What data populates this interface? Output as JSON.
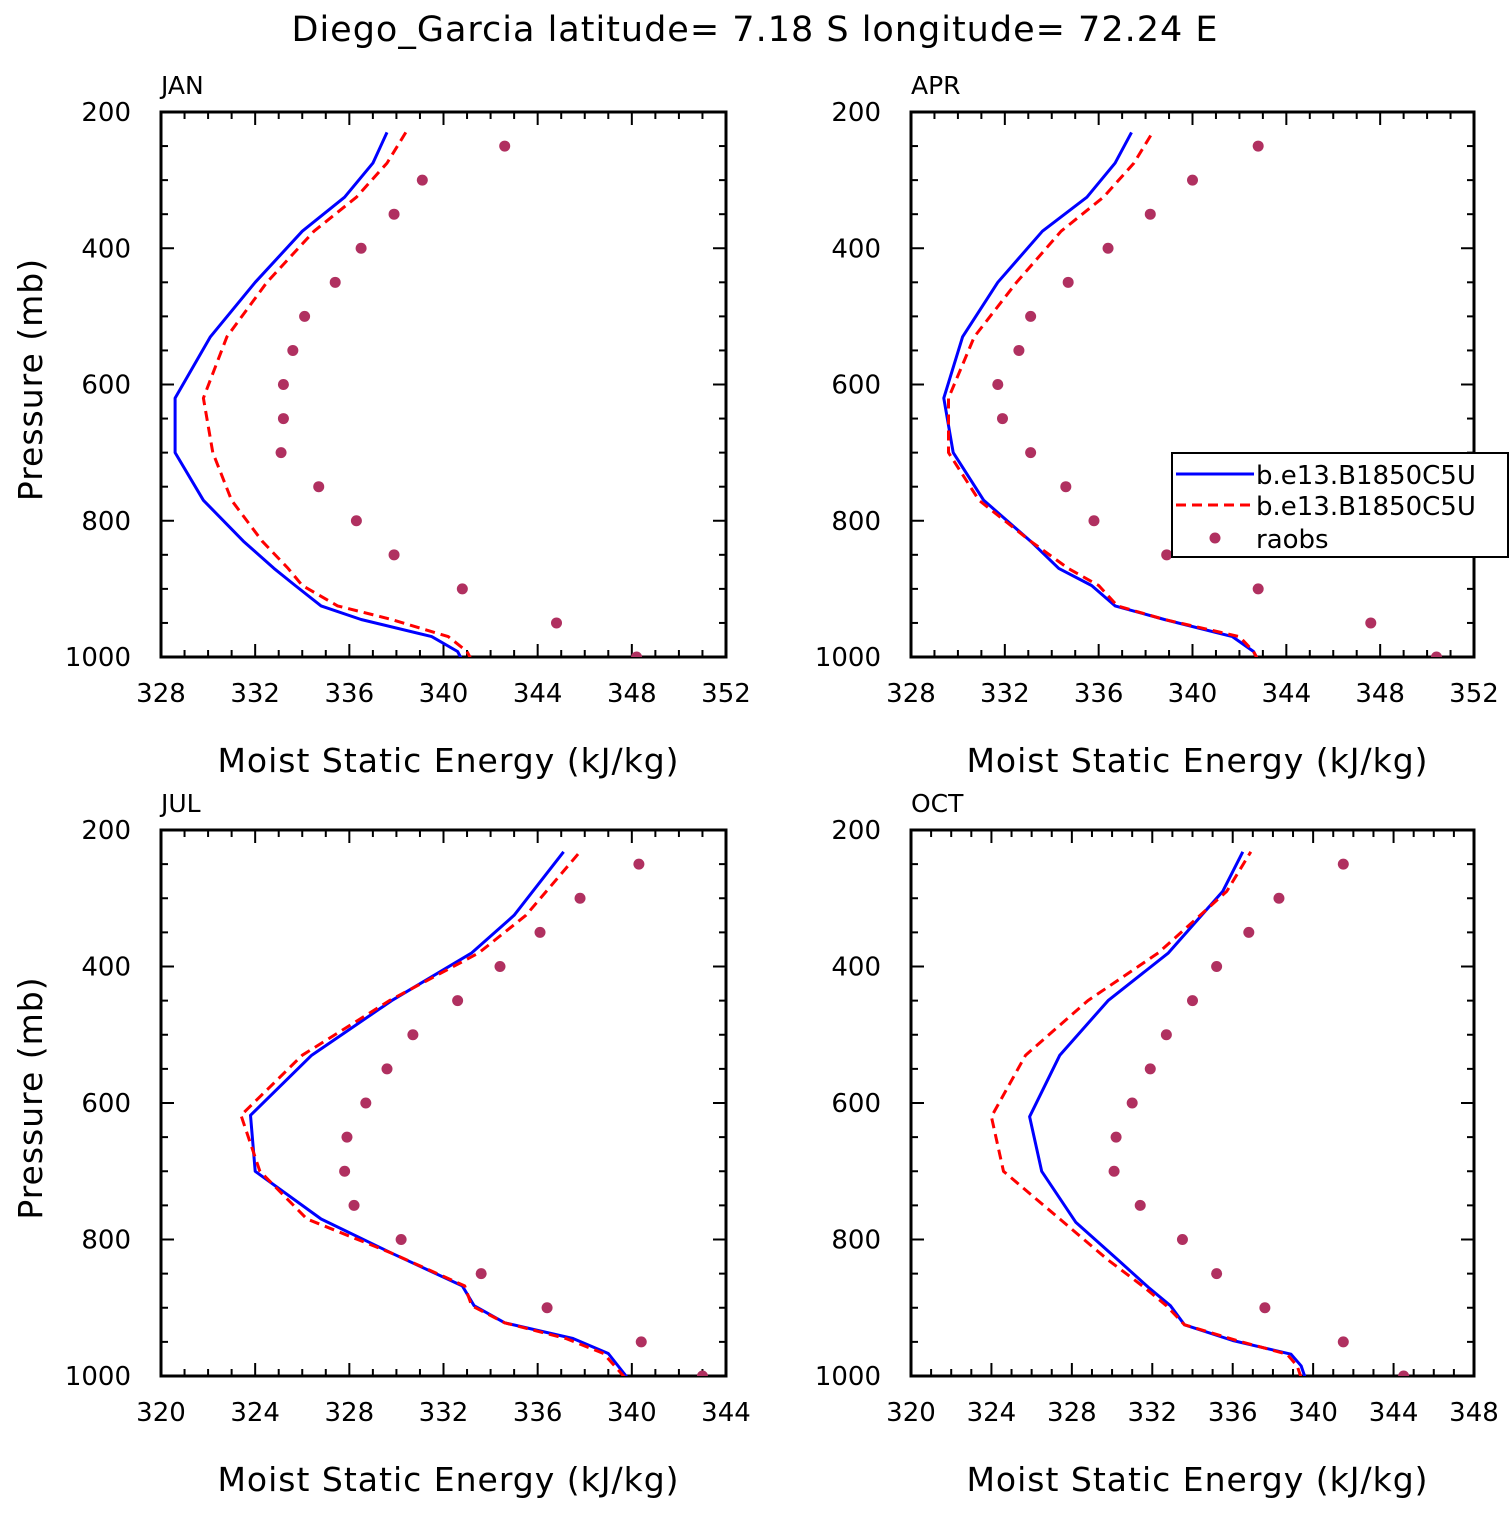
{
  "title": "Diego_Garcia  latitude= 7.18 S longitude= 72.24 E",
  "colors": {
    "model1": "#0000ff",
    "model2": "#ff0000",
    "raobs": "#b03060",
    "axis": "#000000"
  },
  "legend": [
    "b.e13.B1850C5U",
    "b.e13.B1850C5U",
    "raobs"
  ],
  "chart_data": [
    {
      "type": "line",
      "panel": "JAN",
      "xlabel": "Moist Static Energy (kJ/kg)",
      "ylabel": "Pressure (mb)",
      "xlim": [
        328,
        352
      ],
      "ylim": [
        1000,
        200
      ],
      "xticks": [
        328,
        332,
        336,
        340,
        344,
        348,
        352
      ],
      "yticks": [
        200,
        400,
        600,
        800,
        1000
      ],
      "legend": false,
      "series": [
        {
          "name": "b.e13.B1850C5U",
          "style": "solid",
          "x": [
            340.8,
            340.6,
            339.5,
            336.5,
            334.8,
            333.7,
            332.8,
            331.5,
            329.8,
            328.6,
            328.6,
            330.1,
            332.0,
            334.0,
            335.8,
            337.0,
            337.6
          ],
          "y": [
            1005,
            992,
            970,
            945,
            925,
            895,
            870,
            830,
            770,
            700,
            620,
            530,
            450,
            375,
            325,
            275,
            230
          ]
        },
        {
          "name": "b.e13.B1850C5U",
          "style": "dashed",
          "x": [
            341.2,
            341.0,
            340.2,
            337.8,
            335.5,
            334.0,
            333.4,
            332.3,
            331.0,
            330.2,
            329.8,
            330.8,
            332.5,
            334.5,
            336.3,
            337.6,
            338.4
          ],
          "y": [
            1005,
            992,
            970,
            945,
            925,
            895,
            870,
            830,
            770,
            700,
            620,
            530,
            450,
            375,
            325,
            275,
            230
          ]
        },
        {
          "name": "raobs",
          "style": "points",
          "x": [
            348.2,
            344.8,
            340.8,
            337.9,
            336.3,
            334.7,
            333.1,
            333.2,
            333.2,
            333.6,
            334.1,
            335.4,
            336.5,
            337.9,
            339.1,
            342.6
          ],
          "y": [
            1000,
            950,
            900,
            850,
            800,
            750,
            700,
            650,
            600,
            550,
            500,
            450,
            400,
            350,
            300,
            250
          ]
        }
      ]
    },
    {
      "type": "line",
      "panel": "APR",
      "xlabel": "Moist Static Energy (kJ/kg)",
      "ylabel": "",
      "xlim": [
        328,
        352
      ],
      "ylim": [
        1000,
        200
      ],
      "xticks": [
        328,
        332,
        336,
        340,
        344,
        348,
        352
      ],
      "yticks": [
        200,
        400,
        600,
        800,
        1000
      ],
      "legend": true,
      "series": [
        {
          "name": "b.e13.B1850C5U",
          "style": "solid",
          "x": [
            342.8,
            342.6,
            341.7,
            338.8,
            336.7,
            335.7,
            334.3,
            333.1,
            331.1,
            329.8,
            329.4,
            330.2,
            331.7,
            333.6,
            335.5,
            336.7,
            337.4
          ],
          "y": [
            1005,
            992,
            970,
            945,
            925,
            895,
            870,
            830,
            770,
            700,
            620,
            530,
            450,
            375,
            325,
            275,
            230
          ]
        },
        {
          "name": "b.e13.B1850C5U",
          "style": "dashed",
          "x": [
            342.8,
            342.6,
            342.0,
            338.8,
            336.8,
            336.0,
            334.7,
            333.1,
            330.9,
            329.6,
            329.6,
            330.7,
            332.5,
            334.4,
            336.2,
            337.5,
            338.3
          ],
          "y": [
            1005,
            992,
            970,
            945,
            925,
            895,
            870,
            830,
            770,
            700,
            620,
            530,
            450,
            375,
            325,
            275,
            230
          ]
        },
        {
          "name": "raobs",
          "style": "points",
          "x": [
            350.4,
            347.6,
            342.8,
            338.9,
            335.8,
            334.6,
            333.1,
            331.9,
            331.7,
            332.6,
            333.1,
            334.7,
            336.4,
            338.2,
            340.0,
            342.8
          ],
          "y": [
            1000,
            950,
            900,
            850,
            800,
            750,
            700,
            650,
            600,
            550,
            500,
            450,
            400,
            350,
            300,
            250
          ]
        }
      ]
    },
    {
      "type": "line",
      "panel": "JUL",
      "xlabel": "Moist Static Energy (kJ/kg)",
      "ylabel": "Pressure (mb)",
      "xlim": [
        320,
        344
      ],
      "ylim": [
        1000,
        200
      ],
      "xticks": [
        320,
        324,
        328,
        332,
        336,
        340,
        344
      ],
      "yticks": [
        200,
        400,
        600,
        800,
        1000
      ],
      "legend": false,
      "series": [
        {
          "name": "b.e13.B1850C5U",
          "style": "solid",
          "x": [
            339.8,
            339.0,
            337.5,
            334.6,
            333.3,
            332.8,
            329.8,
            326.8,
            324.0,
            323.8,
            326.4,
            329.8,
            333.2,
            335.0,
            337.1
          ],
          "y": [
            1002,
            967,
            945,
            922,
            897,
            868,
            820,
            770,
            700,
            618,
            530,
            450,
            380,
            325,
            232
          ]
        },
        {
          "name": "b.e13.B1850C5U",
          "style": "dashed",
          "x": [
            339.7,
            338.8,
            337.2,
            334.6,
            333.2,
            332.9,
            329.8,
            326.2,
            324.2,
            323.4,
            326.0,
            329.7,
            333.5,
            335.5,
            337.8
          ],
          "y": [
            1002,
            967,
            945,
            922,
            897,
            868,
            820,
            770,
            700,
            618,
            530,
            450,
            380,
            325,
            232
          ]
        },
        {
          "name": "raobs",
          "style": "points",
          "x": [
            343.0,
            340.4,
            336.4,
            333.6,
            330.2,
            328.2,
            327.8,
            327.9,
            328.7,
            329.6,
            330.7,
            332.6,
            334.4,
            336.1,
            337.8,
            340.3
          ],
          "y": [
            1000,
            950,
            900,
            850,
            800,
            750,
            700,
            650,
            600,
            550,
            500,
            450,
            400,
            350,
            300,
            250
          ]
        }
      ]
    },
    {
      "type": "line",
      "panel": "OCT",
      "xlabel": "Moist Static Energy (kJ/kg)",
      "ylabel": "",
      "xlim": [
        320,
        348
      ],
      "ylim": [
        1000,
        200
      ],
      "xticks": [
        320,
        324,
        328,
        332,
        336,
        340,
        344,
        348
      ],
      "yticks": [
        200,
        400,
        600,
        800,
        1000
      ],
      "legend": false,
      "series": [
        {
          "name": "b.e13.B1850C5U",
          "style": "solid",
          "x": [
            339.6,
            339.4,
            338.9,
            336.0,
            333.6,
            332.9,
            331.8,
            330.3,
            328.2,
            326.5,
            325.9,
            327.4,
            329.8,
            332.8,
            335.5,
            336.5
          ],
          "y": [
            1002,
            985,
            968,
            948,
            925,
            897,
            870,
            830,
            775,
            700,
            620,
            530,
            450,
            380,
            290,
            232
          ]
        },
        {
          "name": "b.e13.B1850C5U",
          "style": "dashed",
          "x": [
            339.4,
            339.2,
            338.7,
            336.2,
            333.6,
            332.7,
            331.6,
            329.8,
            327.6,
            324.6,
            324.0,
            325.7,
            328.8,
            332.3,
            335.7,
            336.9
          ],
          "y": [
            1002,
            985,
            968,
            948,
            925,
            897,
            870,
            830,
            775,
            700,
            620,
            530,
            450,
            380,
            290,
            232
          ]
        },
        {
          "name": "raobs",
          "style": "points",
          "x": [
            344.5,
            341.5,
            337.6,
            335.2,
            333.5,
            331.4,
            330.1,
            330.2,
            331.0,
            331.9,
            332.7,
            334.0,
            335.2,
            336.8,
            338.3,
            341.5
          ],
          "y": [
            1000,
            950,
            900,
            850,
            800,
            750,
            700,
            650,
            600,
            550,
            500,
            450,
            400,
            350,
            300,
            250
          ]
        }
      ]
    }
  ]
}
